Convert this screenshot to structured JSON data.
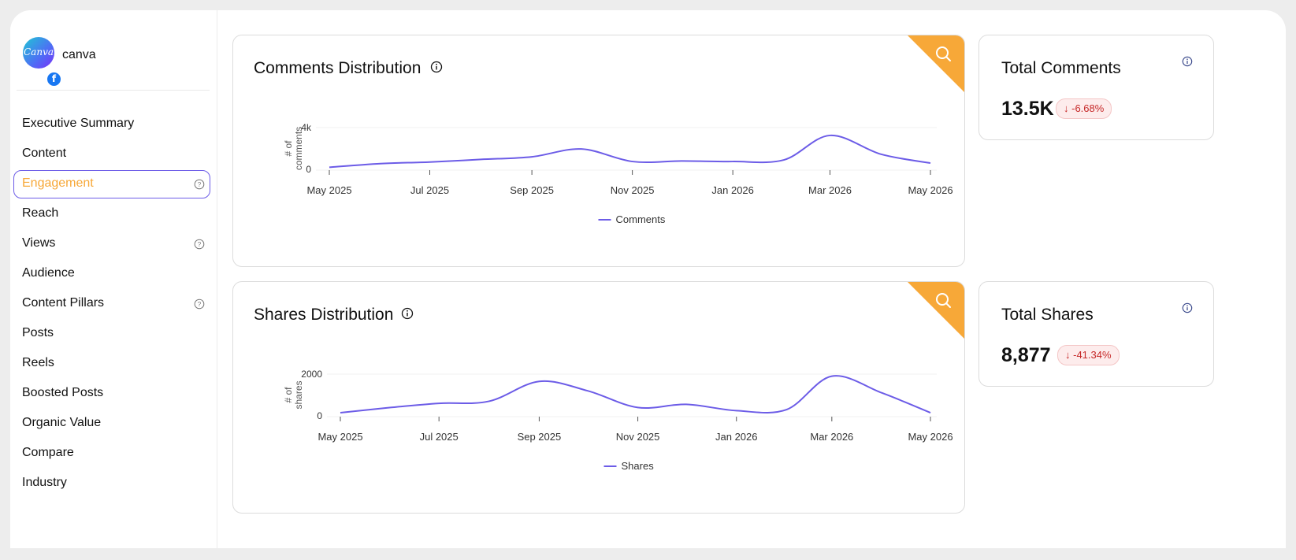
{
  "brand": {
    "name": "canva",
    "logo_text": "Canva",
    "badge_icon": "facebook-icon"
  },
  "nav": {
    "items": [
      {
        "label": "Executive Summary",
        "help": false,
        "active": false
      },
      {
        "label": "Content",
        "help": false,
        "active": false
      },
      {
        "label": "Engagement",
        "help": true,
        "active": true
      },
      {
        "label": "Reach",
        "help": false,
        "active": false
      },
      {
        "label": "Views",
        "help": true,
        "active": false
      },
      {
        "label": "Audience",
        "help": false,
        "active": false
      },
      {
        "label": "Content Pillars",
        "help": true,
        "active": false
      },
      {
        "label": "Posts",
        "help": false,
        "active": false
      },
      {
        "label": "Reels",
        "help": false,
        "active": false
      },
      {
        "label": "Boosted Posts",
        "help": false,
        "active": false
      },
      {
        "label": "Organic Value",
        "help": false,
        "active": false
      },
      {
        "label": "Compare",
        "help": false,
        "active": false
      },
      {
        "label": "Industry",
        "help": false,
        "active": false
      }
    ]
  },
  "colors": {
    "accent": "#f7a838",
    "line": "#6c5ce7",
    "active_border": "#6c5ce7",
    "badge_down": "#c62828"
  },
  "comments_card": {
    "title": "Comments Distribution"
  },
  "shares_card": {
    "title": "Shares Distribution"
  },
  "total_comments": {
    "title": "Total Comments",
    "value": "13.5K",
    "change": "↓ -6.68%"
  },
  "total_shares": {
    "title": "Total Shares",
    "value": "8,877",
    "change": "↓ -41.34%"
  },
  "chart_data": [
    {
      "type": "line",
      "ylabel": "# of comments",
      "yticks": [
        "0",
        "4k"
      ],
      "ylim": [
        0,
        4000
      ],
      "xticks": [
        "May 2025",
        "Jul 2025",
        "Sep 2025",
        "Nov 2025",
        "Jan 2026",
        "Mar 2026",
        "May 2026"
      ],
      "series": [
        {
          "name": "Comments",
          "x": [
            "2025-05-01",
            "2025-06-01",
            "2025-07-01",
            "2025-08-01",
            "2025-09-01",
            "2025-10-01",
            "2025-11-01",
            "2025-12-01",
            "2026-01-01",
            "2026-02-01",
            "2026-03-01",
            "2026-04-01",
            "2026-05-01"
          ],
          "values": [
            200,
            550,
            700,
            950,
            1200,
            1950,
            750,
            800,
            750,
            900,
            3250,
            1450,
            600
          ]
        }
      ],
      "grid": true,
      "legend": "bottom"
    },
    {
      "type": "line",
      "ylabel": "# of shares",
      "yticks": [
        "0",
        "2000"
      ],
      "ylim": [
        0,
        2000
      ],
      "xticks": [
        "May 2025",
        "Jul 2025",
        "Sep 2025",
        "Nov 2025",
        "Jan 2026",
        "Mar 2026",
        "May 2026"
      ],
      "series": [
        {
          "name": "Shares",
          "x": [
            "2025-05-01",
            "2025-06-01",
            "2025-07-01",
            "2025-08-01",
            "2025-09-01",
            "2025-10-01",
            "2025-11-01",
            "2025-12-01",
            "2026-01-01",
            "2026-02-01",
            "2026-03-01",
            "2026-04-01",
            "2026-05-01"
          ],
          "values": [
            150,
            400,
            600,
            700,
            1650,
            1200,
            400,
            550,
            250,
            300,
            1900,
            1100,
            150
          ]
        }
      ],
      "grid": true,
      "legend": "bottom"
    }
  ]
}
